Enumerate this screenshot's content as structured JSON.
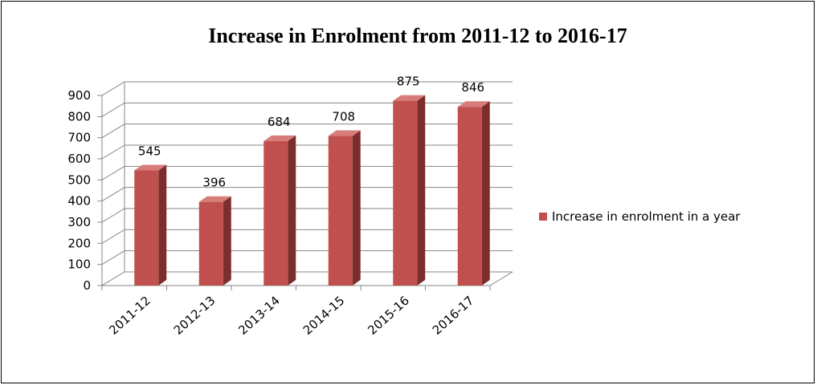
{
  "chart_data": {
    "type": "bar",
    "title": "Increase in Enrolment from 2011-12 to 2016-17",
    "categories": [
      "2011-12",
      "2012-13",
      "2013-14",
      "2014-15",
      "2015-16",
      "2016-17"
    ],
    "series": [
      {
        "name": "Increase in enrolment in a year",
        "values": [
          545,
          396,
          684,
          708,
          875,
          846
        ],
        "color": "#c0504d"
      }
    ],
    "yticks": [
      "0",
      "100",
      "200",
      "300",
      "400",
      "500",
      "600",
      "700",
      "800",
      "900"
    ],
    "ylim": [
      0,
      900
    ],
    "grid": true,
    "legend": "right",
    "style": "3d-column"
  }
}
